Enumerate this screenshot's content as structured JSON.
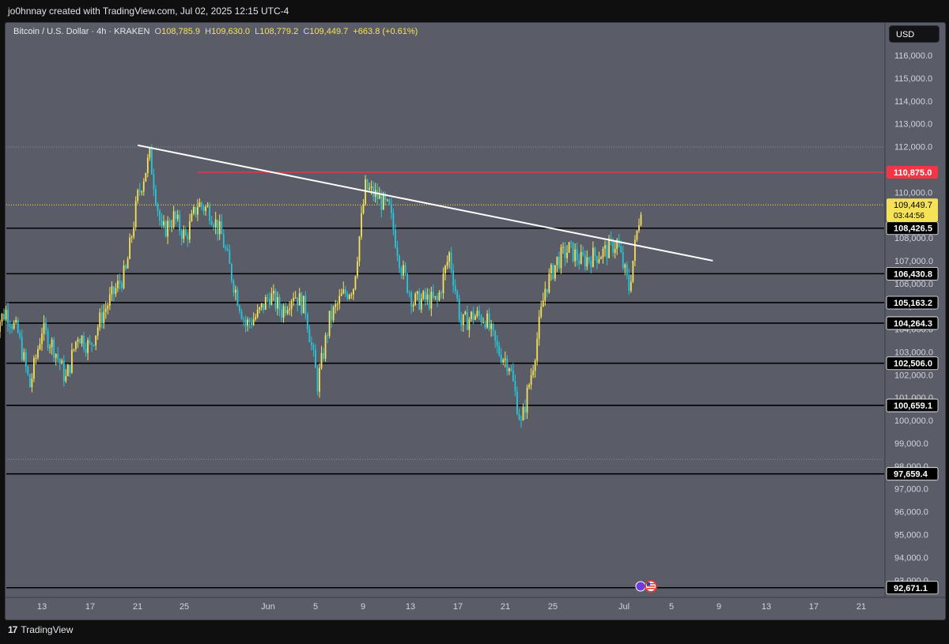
{
  "header": {
    "attribution": "jo0hnnay created with TradingView.com, Jul 02, 2025 12:15 UTC-4"
  },
  "legend": {
    "symbol": "Bitcoin / U.S. Dollar · 4h · KRAKEN",
    "o_label": "O",
    "o_value": "108,785.9",
    "h_label": "H",
    "h_value": "109,630.0",
    "l_label": "L",
    "l_value": "108,779.2",
    "c_label": "C",
    "c_value": "109,449.7",
    "change": "+663.8 (+0.61%)"
  },
  "currency_button": "USD",
  "footer": {
    "brand_logo": "17",
    "brand_text": "TradingView"
  },
  "colors": {
    "background": "#5a5c68",
    "up_candle": "#f5e257",
    "down_candle": "#26c6da",
    "resistance_line": "#f23645",
    "trendline": "#ffffff",
    "level_line": "#000000"
  },
  "chart_data": {
    "type": "candlestick",
    "symbol": "BTCUSD",
    "timeframe": "4h",
    "y_axis": {
      "ticks": [
        "116,000.0",
        "115,000.0",
        "114,000.0",
        "113,000.0",
        "112,000.0",
        "111,000.0",
        "110,000.0",
        "109,000.0",
        "108,000.0",
        "107,000.0",
        "106,000.0",
        "105,000.0",
        "104,000.0",
        "103,000.0",
        "102,000.0",
        "101,000.0",
        "100,000.0",
        "99,000.0",
        "98,000.0",
        "97,000.0",
        "96,000.0",
        "95,000.0",
        "94,000.0",
        "93,000.0"
      ],
      "tick_values": [
        116000,
        115000,
        114000,
        113000,
        112000,
        111000,
        110000,
        109000,
        108000,
        107000,
        106000,
        105000,
        104000,
        103000,
        102000,
        101000,
        100000,
        99000,
        98000,
        97000,
        96000,
        95000,
        94000,
        93000
      ],
      "range": [
        92500,
        117200
      ]
    },
    "x_axis": {
      "ticks": [
        "13",
        "17",
        "21",
        "25",
        "Jun",
        "5",
        "9",
        "13",
        "17",
        "21",
        "25",
        "Jul",
        "5",
        "9",
        "13",
        "17",
        "21"
      ]
    },
    "current_price": {
      "value": 109449.7,
      "label": "109,449.7",
      "countdown": "03:44:56"
    },
    "horizontal_levels": [
      {
        "value": 110875.0,
        "label": "110,875.0",
        "role": "resistance",
        "starts_at": "May 26"
      },
      {
        "value": 108426.5,
        "label": "108,426.5"
      },
      {
        "value": 106430.8,
        "label": "106,430.8"
      },
      {
        "value": 105163.2,
        "label": "105,163.2"
      },
      {
        "value": 104264.3,
        "label": "104,264.3"
      },
      {
        "value": 102506.0,
        "label": "102,506.0"
      },
      {
        "value": 100659.1,
        "label": "100,659.1"
      },
      {
        "value": 97659.4,
        "label": "97,659.4"
      },
      {
        "value": 92671.1,
        "label": "92,671.1"
      }
    ],
    "dotted_levels": [
      111985,
      98300
    ],
    "trendline": {
      "from": {
        "date": "May 21",
        "price": 112060
      },
      "to": {
        "date": "Jul 8",
        "price": 107000
      }
    },
    "price_path": [
      [
        "May 9",
        104000
      ],
      [
        "May 10",
        104800
      ],
      [
        "May 11",
        103800
      ],
      [
        "May 12",
        101500
      ],
      [
        "May 13",
        104000
      ],
      [
        "May 14",
        103200
      ],
      [
        "May 15",
        101800
      ],
      [
        "May 16",
        103800
      ],
      [
        "May 17",
        103200
      ],
      [
        "May 18",
        104600
      ],
      [
        "May 19",
        105600
      ],
      [
        "May 20",
        106500
      ],
      [
        "May 21",
        109800
      ],
      [
        "May 22",
        111600
      ],
      [
        "May 23",
        108200
      ],
      [
        "May 24",
        108900
      ],
      [
        "May 25",
        108000
      ],
      [
        "May 26",
        109500
      ],
      [
        "May 27",
        109200
      ],
      [
        "May 28",
        108100
      ],
      [
        "May 29",
        106000
      ],
      [
        "May 30",
        104200
      ],
      [
        "May 31",
        104600
      ],
      [
        "Jun 1",
        105500
      ],
      [
        "Jun 2",
        104800
      ],
      [
        "Jun 3",
        105600
      ],
      [
        "Jun 4",
        104900
      ],
      [
        "Jun 5",
        101600
      ],
      [
        "Jun 6",
        104400
      ],
      [
        "Jun 7",
        105400
      ],
      [
        "Jun 8",
        105900
      ],
      [
        "Jun 9",
        110200
      ],
      [
        "Jun 10",
        109800
      ],
      [
        "Jun 11",
        109200
      ],
      [
        "Jun 12",
        106700
      ],
      [
        "Jun 13",
        105200
      ],
      [
        "Jun 14",
        105300
      ],
      [
        "Jun 15",
        105200
      ],
      [
        "Jun 16",
        107300
      ],
      [
        "Jun 17",
        104200
      ],
      [
        "Jun 18",
        104600
      ],
      [
        "Jun 19",
        104500
      ],
      [
        "Jun 20",
        103100
      ],
      [
        "Jun 21",
        102500
      ],
      [
        "Jun 22",
        99800
      ],
      [
        "Jun 23",
        102500
      ],
      [
        "Jun 24",
        105800
      ],
      [
        "Jun 25",
        107000
      ],
      [
        "Jun 26",
        107500
      ],
      [
        "Jun 27",
        107000
      ],
      [
        "Jun 28",
        107200
      ],
      [
        "Jun 29",
        107400
      ],
      [
        "Jun 30",
        107800
      ],
      [
        "Jul 1",
        105800
      ],
      [
        "Jul 2",
        109449.7
      ]
    ]
  }
}
